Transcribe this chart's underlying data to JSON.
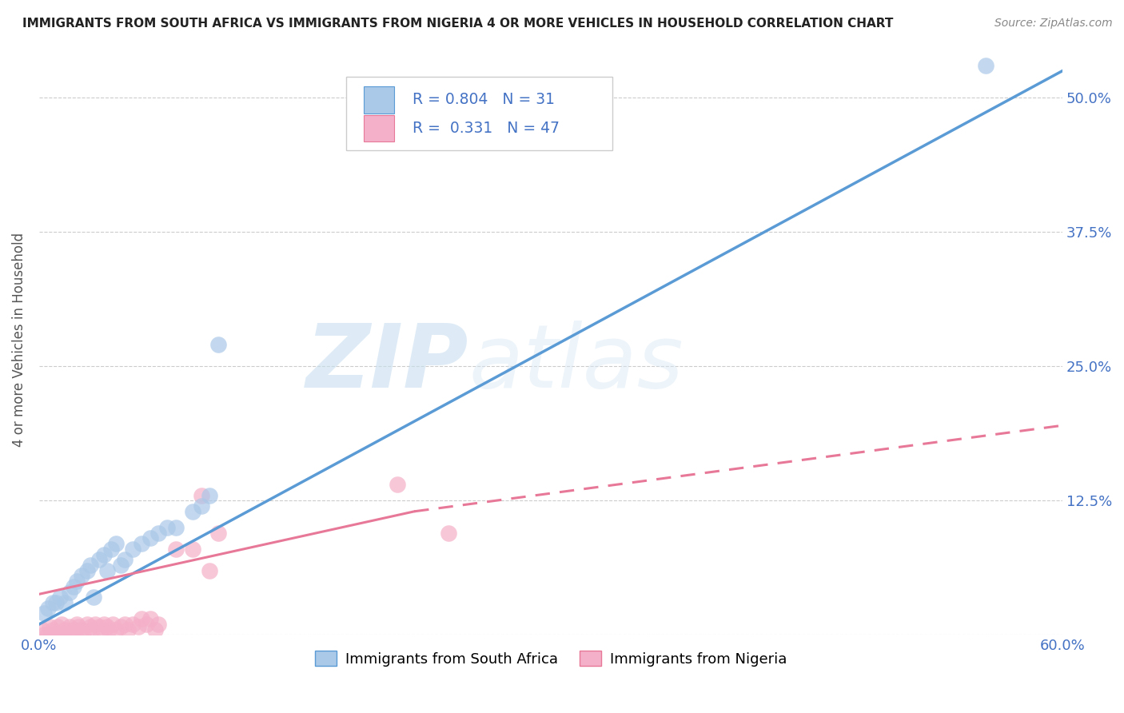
{
  "title": "IMMIGRANTS FROM SOUTH AFRICA VS IMMIGRANTS FROM NIGERIA 4 OR MORE VEHICLES IN HOUSEHOLD CORRELATION CHART",
  "source": "Source: ZipAtlas.com",
  "ylabel": "4 or more Vehicles in Household",
  "xlim": [
    0.0,
    0.6
  ],
  "ylim": [
    0.0,
    0.55
  ],
  "ytick_values": [
    0.0,
    0.125,
    0.25,
    0.375,
    0.5
  ],
  "ytick_labels": [
    "",
    "12.5%",
    "25.0%",
    "37.5%",
    "50.0%"
  ],
  "grid_color": "#cccccc",
  "background_color": "#ffffff",
  "series1_color": "#aac8e8",
  "series2_color": "#f4b0c8",
  "series1_line_color": "#5b9bd5",
  "series2_line_color": "#e87898",
  "series1_label": "Immigrants from South Africa",
  "series2_label": "Immigrants from Nigeria",
  "R1": "0.804",
  "N1": "31",
  "R2": "0.331",
  "N2": "47",
  "watermark_zip": "ZIP",
  "watermark_atlas": "atlas",
  "legend_box_color1": "#aac8e8",
  "legend_box_color2": "#f4b0c8",
  "legend_border_color": "#cccccc",
  "text_color_blue": "#4472c4",
  "series1_x": [
    0.003,
    0.005,
    0.008,
    0.01,
    0.012,
    0.015,
    0.018,
    0.02,
    0.022,
    0.025,
    0.028,
    0.03,
    0.032,
    0.035,
    0.038,
    0.04,
    0.042,
    0.045,
    0.048,
    0.05,
    0.055,
    0.06,
    0.065,
    0.07,
    0.075,
    0.08,
    0.09,
    0.095,
    0.1,
    0.555,
    0.105
  ],
  "series1_y": [
    0.02,
    0.025,
    0.03,
    0.03,
    0.035,
    0.03,
    0.04,
    0.045,
    0.05,
    0.055,
    0.06,
    0.065,
    0.035,
    0.07,
    0.075,
    0.06,
    0.08,
    0.085,
    0.065,
    0.07,
    0.08,
    0.085,
    0.09,
    0.095,
    0.1,
    0.1,
    0.115,
    0.12,
    0.13,
    0.53,
    0.27
  ],
  "series2_x": [
    0.002,
    0.003,
    0.005,
    0.006,
    0.007,
    0.008,
    0.01,
    0.011,
    0.012,
    0.013,
    0.015,
    0.016,
    0.018,
    0.02,
    0.021,
    0.022,
    0.023,
    0.025,
    0.026,
    0.028,
    0.03,
    0.031,
    0.033,
    0.035,
    0.036,
    0.038,
    0.04,
    0.041,
    0.043,
    0.045,
    0.048,
    0.05,
    0.052,
    0.055,
    0.058,
    0.06,
    0.063,
    0.065,
    0.068,
    0.07,
    0.08,
    0.09,
    0.095,
    0.1,
    0.105,
    0.21,
    0.24
  ],
  "series2_y": [
    0.005,
    0.0,
    0.0,
    0.008,
    0.0,
    0.005,
    0.0,
    0.008,
    0.0,
    0.01,
    0.005,
    0.0,
    0.008,
    0.005,
    0.0,
    0.01,
    0.008,
    0.005,
    0.0,
    0.01,
    0.008,
    0.005,
    0.01,
    0.008,
    0.0,
    0.01,
    0.008,
    0.005,
    0.01,
    0.005,
    0.008,
    0.01,
    0.005,
    0.01,
    0.008,
    0.015,
    0.01,
    0.015,
    0.005,
    0.01,
    0.08,
    0.08,
    0.13,
    0.06,
    0.095,
    0.14,
    0.095
  ]
}
